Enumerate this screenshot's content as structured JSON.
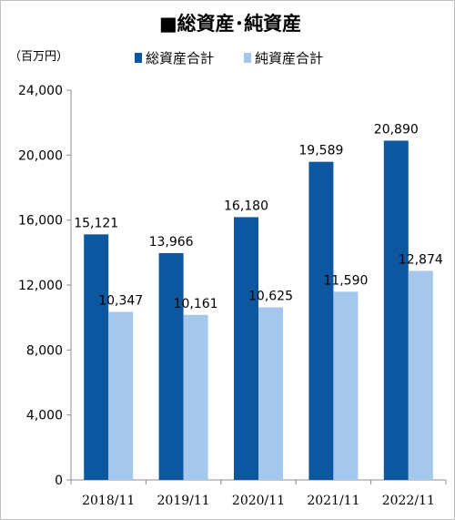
{
  "chart_data": {
    "type": "bar",
    "title": "■総資産･純資産",
    "unit_label": "（百万円）",
    "categories": [
      "2018/11",
      "2019/11",
      "2020/11",
      "2021/11",
      "2022/11"
    ],
    "series": [
      {
        "name": "総資産合計",
        "color": "#0d56a0",
        "values": [
          15121,
          13966,
          16180,
          19589,
          20890
        ],
        "labels": [
          "15,121",
          "13,966",
          "16,180",
          "19,589",
          "20,890"
        ]
      },
      {
        "name": "純資産合計",
        "color": "#a4c7eb",
        "values": [
          10347,
          10161,
          10625,
          11590,
          12874
        ],
        "labels": [
          "10,347",
          "10,161",
          "10,625",
          "11,590",
          "12,874"
        ]
      }
    ],
    "ylim": [
      0,
      24000
    ],
    "yticks": [
      0,
      4000,
      8000,
      12000,
      16000,
      20000,
      24000
    ],
    "ytick_labels": [
      "0",
      "4,000",
      "8,000",
      "12,000",
      "16,000",
      "20,000",
      "24,000"
    ],
    "grid": false,
    "legend_position": "top"
  }
}
